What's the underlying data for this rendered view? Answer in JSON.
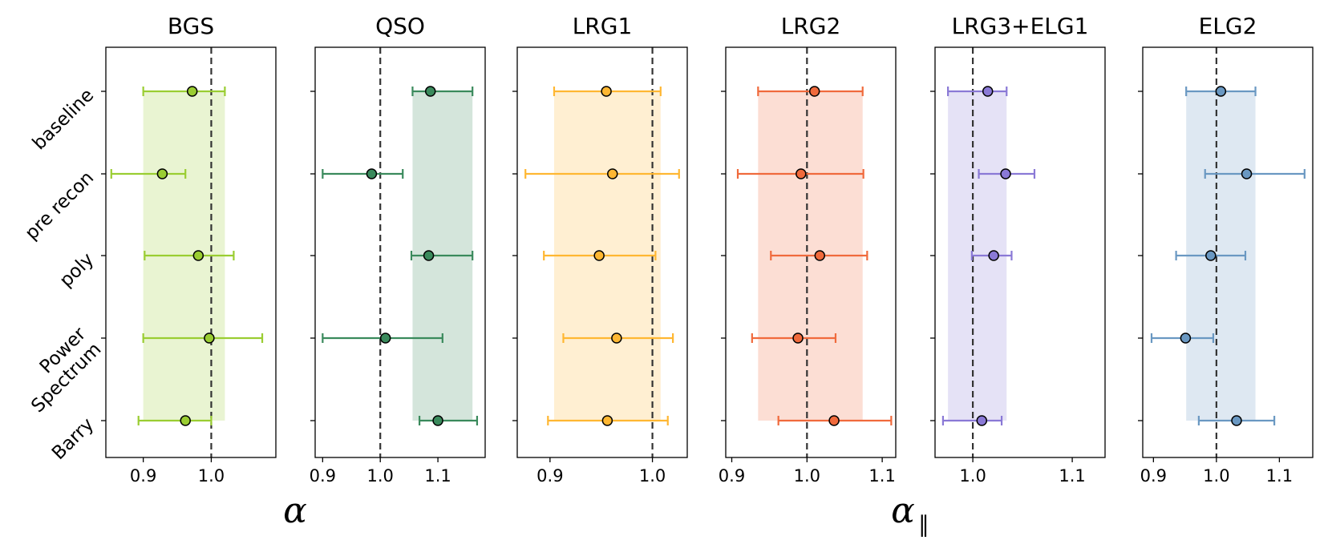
{
  "chart_data": {
    "type": "scatter",
    "description_axes": {
      "xlabel_left": "α",
      "xlabel_right": "α",
      "xlabel_right_subscript": "∥"
    },
    "rows": [
      "baseline",
      "pre recon",
      "poly",
      "Power Spectrum",
      "Barry"
    ],
    "row_label_lines": [
      [
        "baseline"
      ],
      [
        "pre recon"
      ],
      [
        "poly"
      ],
      [
        "Power",
        "Spectrum"
      ],
      [
        "Barry"
      ]
    ],
    "reference_line": 1.0,
    "panels": [
      {
        "title": "BGS",
        "color": "#9acd32",
        "xlim": [
          0.845,
          1.095
        ],
        "ticks": [
          0.9,
          1.0
        ],
        "tick_labels": [
          "0.9",
          "1.0"
        ],
        "band": [
          0.9,
          1.02
        ],
        "points": [
          {
            "row": "baseline",
            "value": 0.972,
            "low": 0.9,
            "high": 1.02
          },
          {
            "row": "pre recon",
            "value": 0.928,
            "low": 0.853,
            "high": 0.962
          },
          {
            "row": "poly",
            "value": 0.981,
            "low": 0.902,
            "high": 1.033
          },
          {
            "row": "Power Spectrum",
            "value": 0.997,
            "low": 0.9,
            "high": 1.075
          },
          {
            "row": "Barry",
            "value": 0.962,
            "low": 0.893,
            "high": 1.0
          }
        ]
      },
      {
        "title": "QSO",
        "color": "#3a8a5c",
        "xlim": [
          0.887,
          1.182
        ],
        "ticks": [
          0.9,
          1.0,
          1.1
        ],
        "tick_labels": [
          "0.9",
          "1.0",
          "1.1"
        ],
        "band": [
          1.056,
          1.16
        ],
        "points": [
          {
            "row": "baseline",
            "value": 1.087,
            "low": 1.056,
            "high": 1.16
          },
          {
            "row": "pre recon",
            "value": 0.985,
            "low": 0.9,
            "high": 1.039
          },
          {
            "row": "poly",
            "value": 1.084,
            "low": 1.054,
            "high": 1.16
          },
          {
            "row": "Power Spectrum",
            "value": 1.009,
            "low": 0.9,
            "high": 1.108
          },
          {
            "row": "Barry",
            "value": 1.1,
            "low": 1.068,
            "high": 1.168
          }
        ]
      },
      {
        "title": "LRG1",
        "color": "#ffb732",
        "xlim": [
          0.868,
          1.034
        ],
        "ticks": [
          0.9,
          1.0
        ],
        "tick_labels": [
          "0.9",
          "1.0"
        ],
        "band": [
          0.904,
          1.008
        ],
        "points": [
          {
            "row": "baseline",
            "value": 0.955,
            "low": 0.904,
            "high": 1.008
          },
          {
            "row": "pre recon",
            "value": 0.961,
            "low": 0.876,
            "high": 1.026
          },
          {
            "row": "poly",
            "value": 0.948,
            "low": 0.894,
            "high": 1.003
          },
          {
            "row": "Power Spectrum",
            "value": 0.965,
            "low": 0.913,
            "high": 1.02
          },
          {
            "row": "Barry",
            "value": 0.956,
            "low": 0.898,
            "high": 1.015
          }
        ]
      },
      {
        "title": "LRG2",
        "color": "#f06a3c",
        "xlim": [
          0.892,
          1.118
        ],
        "ticks": [
          0.9,
          1.0,
          1.1
        ],
        "tick_labels": [
          "0.9",
          "1.0",
          "1.1"
        ],
        "band": [
          0.935,
          1.074
        ],
        "points": [
          {
            "row": "baseline",
            "value": 1.01,
            "low": 0.935,
            "high": 1.074
          },
          {
            "row": "pre recon",
            "value": 0.992,
            "low": 0.908,
            "high": 1.075
          },
          {
            "row": "poly",
            "value": 1.017,
            "low": 0.952,
            "high": 1.08
          },
          {
            "row": "Power Spectrum",
            "value": 0.988,
            "low": 0.927,
            "high": 1.038
          },
          {
            "row": "Barry",
            "value": 1.036,
            "low": 0.962,
            "high": 1.112
          }
        ]
      },
      {
        "title": "LRG3+ELG1",
        "color": "#8a79d6",
        "xlim": [
          0.962,
          1.133
        ],
        "ticks": [
          1.0,
          1.1
        ],
        "tick_labels": [
          "1.0",
          "1.1"
        ],
        "band": [
          0.975,
          1.034
        ],
        "points": [
          {
            "row": "baseline",
            "value": 1.015,
            "low": 0.975,
            "high": 1.034
          },
          {
            "row": "pre recon",
            "value": 1.033,
            "low": 1.006,
            "high": 1.062
          },
          {
            "row": "poly",
            "value": 1.021,
            "low": 0.999,
            "high": 1.039
          },
          {
            "row": "Power Spectrum",
            "value": null,
            "low": null,
            "high": null
          },
          {
            "row": "Barry",
            "value": 1.009,
            "low": 0.97,
            "high": 1.029
          }
        ]
      },
      {
        "title": "ELG2",
        "color": "#6a98c2",
        "xlim": [
          0.883,
          1.153
        ],
        "ticks": [
          0.9,
          1.0,
          1.1
        ],
        "tick_labels": [
          "0.9",
          "1.0",
          "1.1"
        ],
        "band": [
          0.952,
          1.062
        ],
        "points": [
          {
            "row": "baseline",
            "value": 1.007,
            "low": 0.952,
            "high": 1.062
          },
          {
            "row": "pre recon",
            "value": 1.048,
            "low": 0.982,
            "high": 1.14
          },
          {
            "row": "poly",
            "value": 0.991,
            "low": 0.936,
            "high": 1.046
          },
          {
            "row": "Power Spectrum",
            "value": 0.951,
            "low": 0.897,
            "high": 0.995
          },
          {
            "row": "Barry",
            "value": 1.032,
            "low": 0.972,
            "high": 1.092
          }
        ]
      }
    ]
  }
}
